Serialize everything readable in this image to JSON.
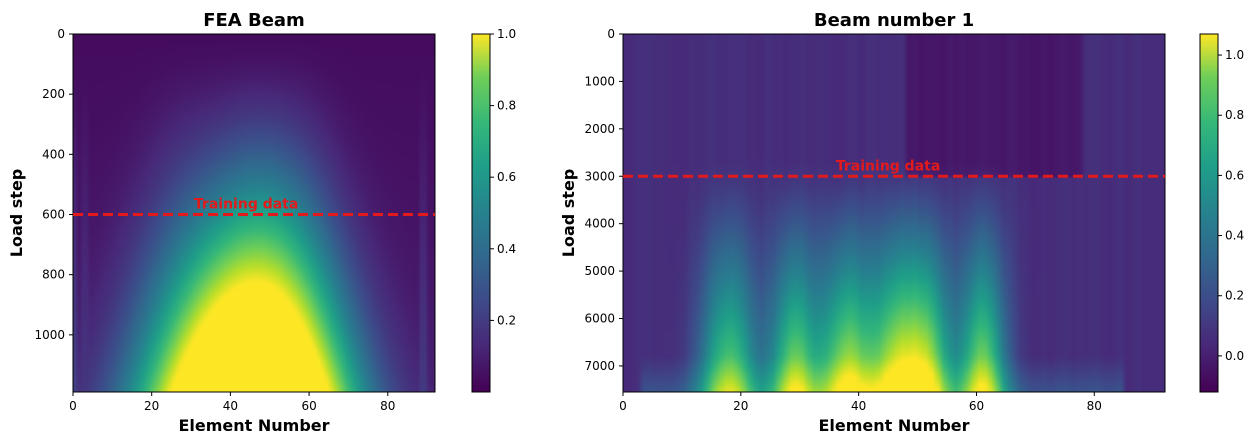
{
  "chart_data": [
    {
      "type": "heatmap",
      "title": "FEA Beam",
      "xlabel": "Element Number",
      "ylabel": "Load step",
      "xlim": [
        0,
        92
      ],
      "ylim": [
        1190,
        0
      ],
      "y_inverted": true,
      "xticks": [
        0,
        20,
        40,
        60,
        80
      ],
      "yticks": [
        0,
        200,
        400,
        600,
        800,
        1000
      ],
      "colormap": "viridis",
      "colorbar": {
        "range": [
          0.0,
          1.0
        ],
        "ticks": [
          0.2,
          0.4,
          0.6,
          0.8,
          1.0
        ],
        "tick_labels": [
          "0.2",
          "0.4",
          "0.6",
          "0.8",
          "1.0"
        ]
      },
      "annotation": {
        "text": "Training data",
        "line_y": 600,
        "text_x": 44,
        "line_color": "#e31a1c",
        "line_style": "dashed"
      },
      "field": {
        "peaks": [
          {
            "x": 44,
            "amplitude": 1.0
          },
          {
            "x": 56,
            "amplitude": 0.8
          },
          {
            "x": 29,
            "amplitude": 0.55
          }
        ],
        "edge_columns": [
          {
            "x": 0,
            "value": 0.18
          },
          {
            "x": 3,
            "value": 0.14
          },
          {
            "x": 89,
            "value": 0.15
          }
        ],
        "max_value_at_bottom": 1.0
      }
    },
    {
      "type": "heatmap",
      "title": "Beam number 1",
      "xlabel": "Element Number",
      "ylabel": "Load step",
      "xlim": [
        0,
        92
      ],
      "ylim": [
        7550,
        0
      ],
      "y_inverted": true,
      "xticks": [
        0,
        20,
        40,
        60,
        80
      ],
      "yticks": [
        0,
        1000,
        2000,
        3000,
        4000,
        5000,
        6000,
        7000
      ],
      "colormap": "viridis",
      "colorbar": {
        "range": [
          -0.12,
          1.07
        ],
        "ticks": [
          0.0,
          0.2,
          0.4,
          0.6,
          0.8,
          1.0
        ],
        "tick_labels": [
          "0.0",
          "0.2",
          "0.4",
          "0.6",
          "0.8",
          "1.0"
        ]
      },
      "annotation": {
        "text": "Training data",
        "line_y": 3000,
        "text_x": 45,
        "line_color": "#e31a1c",
        "line_style": "dashed"
      },
      "field": {
        "bright_bands": [
          {
            "x_start": 36,
            "x_end": 40,
            "value": 1.02
          },
          {
            "x_start": 45,
            "x_end": 48,
            "value": 1.0
          },
          {
            "x_start": 60,
            "x_end": 62,
            "value": 0.95
          },
          {
            "x_start": 28,
            "x_end": 30,
            "value": 0.9
          },
          {
            "x_start": 51,
            "x_end": 53,
            "value": 0.9
          },
          {
            "x_start": 16,
            "x_end": 20,
            "value": 0.85
          }
        ],
        "dark_region_x": [
          48,
          78
        ]
      }
    }
  ]
}
